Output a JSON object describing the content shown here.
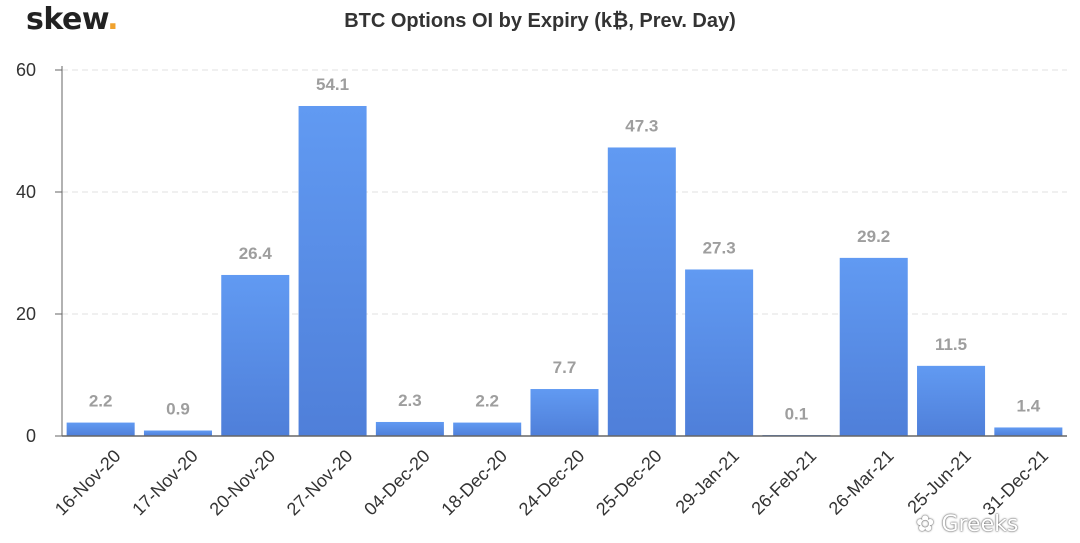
{
  "brand": {
    "logo_text": "skew",
    "logo_dot": ".",
    "watermark": "Greeks"
  },
  "colors": {
    "bar_top": "#619af2",
    "bar_bottom": "#4f7fd9",
    "label": "#9e9e9e",
    "axis_text": "#333333",
    "grid": "#e0e0e0",
    "logo_dot": "#f0a22e"
  },
  "chart_data": {
    "type": "bar",
    "title": "BTC Options OI by Expiry (k₿, Prev. Day)",
    "xlabel": "",
    "ylabel": "",
    "ylim": [
      0,
      60
    ],
    "yticks": [
      0,
      20,
      40,
      60
    ],
    "grid": true,
    "categories": [
      "16-Nov-20",
      "17-Nov-20",
      "20-Nov-20",
      "27-Nov-20",
      "04-Dec-20",
      "18-Dec-20",
      "24-Dec-20",
      "25-Dec-20",
      "29-Jan-21",
      "26-Feb-21",
      "26-Mar-21",
      "25-Jun-21",
      "31-Dec-21"
    ],
    "values": [
      2.2,
      0.9,
      26.4,
      54.1,
      2.3,
      2.2,
      7.7,
      47.3,
      27.3,
      0.1,
      29.2,
      11.5,
      1.4
    ],
    "value_labels": [
      "2.2",
      "0.9",
      "26.4",
      "54.1",
      "2.3",
      "2.2",
      "7.7",
      "47.3",
      "27.3",
      "0.1",
      "29.2",
      "11.5",
      "1.4"
    ]
  }
}
